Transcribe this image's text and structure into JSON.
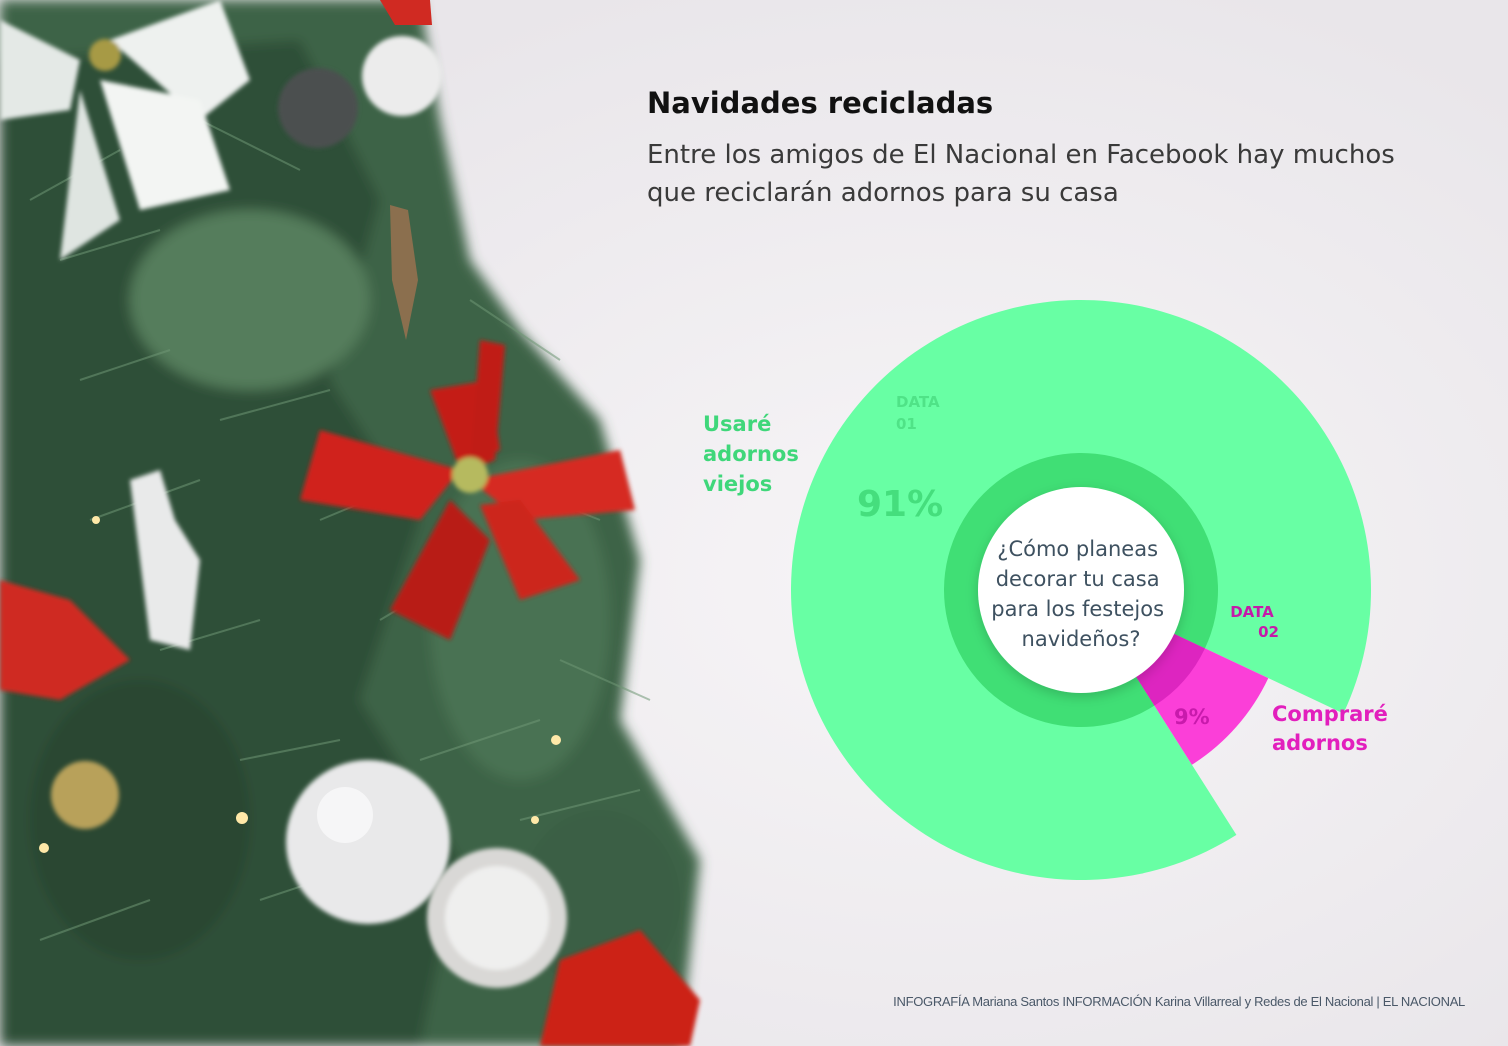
{
  "header": {
    "title": "Navidades recicladas",
    "subtitle": "Entre los amigos de El Nacional en Facebook hay muchos que reciclarán adornos para su casa"
  },
  "chart_data": {
    "type": "pie",
    "style": "polar-area donut",
    "center_question": [
      "¿Cómo planeas",
      "decorar tu casa",
      "para los festejos",
      "navideños?"
    ],
    "categories": [
      "Usaré adornos viejos",
      "Compraré adornos"
    ],
    "values": [
      91,
      9
    ],
    "value_labels": [
      "91%",
      "9%"
    ],
    "tags": [
      [
        "DATA",
        "01"
      ],
      [
        "DATA",
        "02"
      ]
    ],
    "labels_multiline": [
      [
        "Usaré",
        "adornos",
        "viejos"
      ],
      [
        "Compraré",
        "adornos"
      ]
    ],
    "colors": [
      "#68ffa4",
      "#fb3fd8"
    ],
    "inner_ring_colors": [
      "#40df75",
      "#dd25c0"
    ]
  },
  "footer": {
    "credits": "INFOGRAFÍA Mariana Santos INFORMACIÓN Karina Villarreal y Redes de El Nacional | EL NACIONAL"
  },
  "colors": {
    "background": "#f0eef0",
    "tree_green": "#3e6346",
    "poinsettia_red": "#d0231c"
  }
}
